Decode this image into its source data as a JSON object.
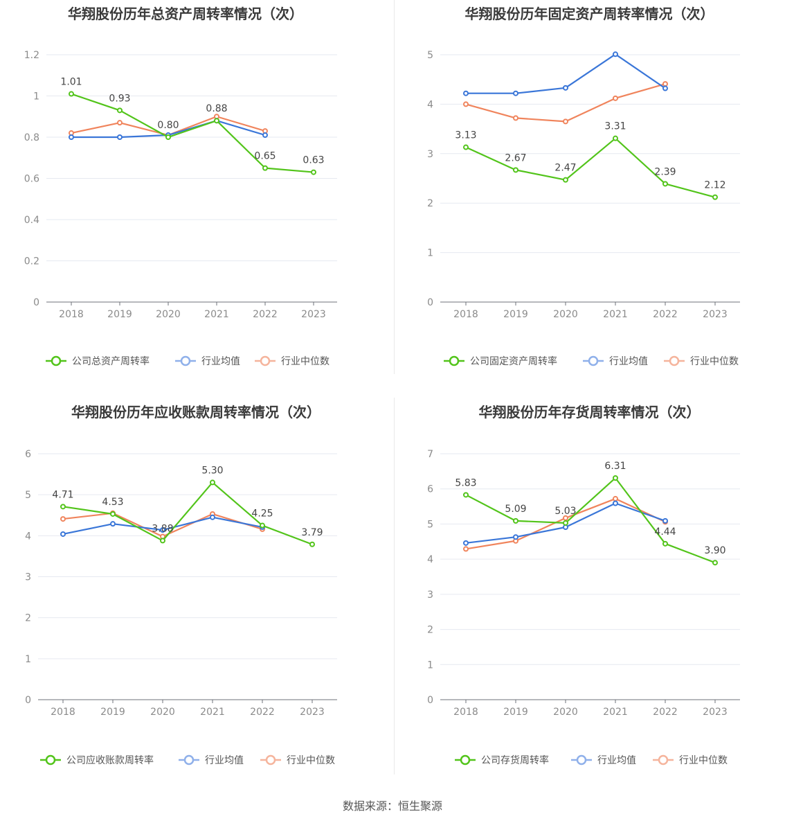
{
  "source_text": "数据来源：恒生聚源",
  "chart_data": [
    {
      "type": "line",
      "title": "华翔股份历年总资产周转率情况（次）",
      "categories": [
        "2018",
        "2019",
        "2020",
        "2021",
        "2022",
        "2023"
      ],
      "ylim": [
        0,
        1.2
      ],
      "yticks": [
        "0",
        "0.2",
        "0.4",
        "0.6",
        "0.8",
        "1",
        "1.2"
      ],
      "series": [
        {
          "name": "公司总资产周转率",
          "color": "#52c41a",
          "values": [
            1.01,
            0.93,
            0.8,
            0.88,
            0.65,
            0.63
          ],
          "labels": [
            "1.01",
            "0.93",
            "0.80",
            "0.88",
            "0.65",
            "0.63"
          ]
        },
        {
          "name": "行业均值",
          "color": "#3a76d8",
          "values": [
            0.8,
            0.8,
            0.81,
            0.88,
            0.81,
            null
          ]
        },
        {
          "name": "行业中位数",
          "color": "#f0845c",
          "values": [
            0.82,
            0.87,
            0.81,
            0.9,
            0.83,
            null
          ]
        }
      ]
    },
    {
      "type": "line",
      "title": "华翔股份历年固定资产周转率情况（次）",
      "categories": [
        "2018",
        "2019",
        "2020",
        "2021",
        "2022",
        "2023"
      ],
      "ylim": [
        0,
        5
      ],
      "yticks": [
        "0",
        "1",
        "2",
        "3",
        "4",
        "5"
      ],
      "series": [
        {
          "name": "公司固定资产周转率",
          "color": "#52c41a",
          "values": [
            3.13,
            2.67,
            2.47,
            3.31,
            2.39,
            2.12
          ],
          "labels": [
            "3.13",
            "2.67",
            "2.47",
            "3.31",
            "2.39",
            "2.12"
          ]
        },
        {
          "name": "行业均值",
          "color": "#3a76d8",
          "values": [
            4.22,
            4.22,
            4.33,
            5.01,
            4.32,
            null
          ]
        },
        {
          "name": "行业中位数",
          "color": "#f0845c",
          "values": [
            4.0,
            3.72,
            3.65,
            4.12,
            4.41,
            null
          ]
        }
      ]
    },
    {
      "type": "line",
      "title": "华翔股份历年应收账款周转率情况（次）",
      "categories": [
        "2018",
        "2019",
        "2020",
        "2021",
        "2022",
        "2023"
      ],
      "ylim": [
        0,
        6
      ],
      "yticks": [
        "0",
        "1",
        "2",
        "3",
        "4",
        "5",
        "6"
      ],
      "series": [
        {
          "name": "公司应收账款周转率",
          "color": "#52c41a",
          "values": [
            4.71,
            4.53,
            3.88,
            5.3,
            4.25,
            3.79
          ],
          "labels": [
            "4.71",
            "4.53",
            "3.88",
            "5.30",
            "4.25",
            "3.79"
          ]
        },
        {
          "name": "行业均值",
          "color": "#3a76d8",
          "values": [
            4.04,
            4.29,
            4.14,
            4.45,
            4.21,
            null
          ]
        },
        {
          "name": "行业中位数",
          "color": "#f0845c",
          "values": [
            4.41,
            4.55,
            3.98,
            4.53,
            4.16,
            null
          ]
        }
      ]
    },
    {
      "type": "line",
      "title": "华翔股份历年存货周转率情况（次）",
      "categories": [
        "2018",
        "2019",
        "2020",
        "2021",
        "2022",
        "2023"
      ],
      "ylim": [
        0,
        7
      ],
      "yticks": [
        "0",
        "1",
        "2",
        "3",
        "4",
        "5",
        "6",
        "7"
      ],
      "series": [
        {
          "name": "公司存货周转率",
          "color": "#52c41a",
          "values": [
            5.83,
            5.09,
            5.03,
            6.31,
            4.44,
            3.9
          ],
          "labels": [
            "5.83",
            "5.09",
            "5.03",
            "6.31",
            "4.44",
            "3.90"
          ]
        },
        {
          "name": "行业均值",
          "color": "#3a76d8",
          "values": [
            4.46,
            4.63,
            4.91,
            5.59,
            5.09,
            null
          ]
        },
        {
          "name": "行业中位数",
          "color": "#f0845c",
          "values": [
            4.29,
            4.52,
            5.17,
            5.72,
            5.06,
            null
          ]
        }
      ]
    }
  ]
}
